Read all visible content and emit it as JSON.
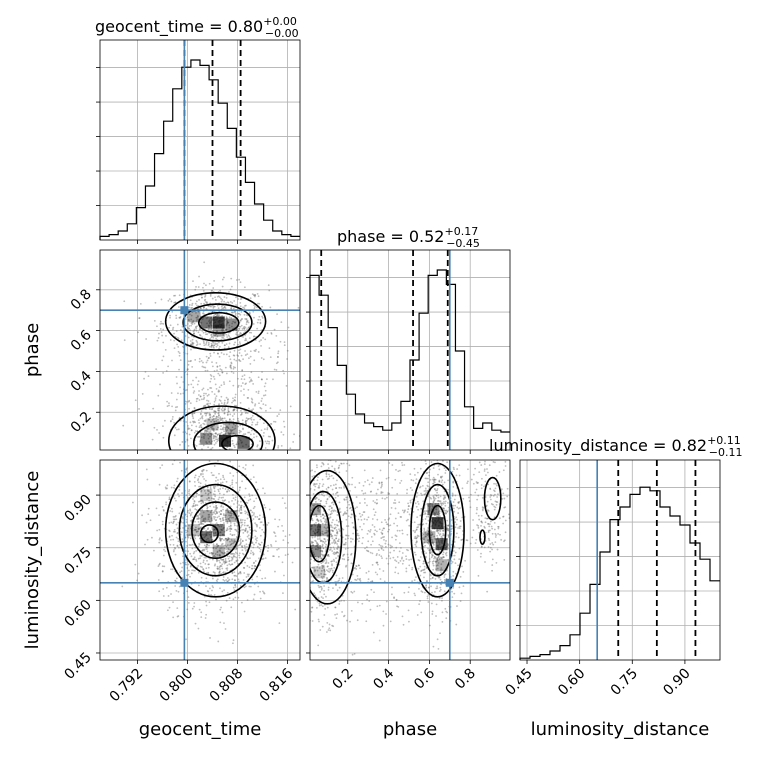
{
  "chart_data": {
    "type": "corner",
    "parameters": [
      {
        "key": "geocent_time",
        "label": "geocent_time",
        "range": [
          0.786,
          0.818
        ],
        "ticks": [
          0.792,
          0.8,
          0.808,
          0.816
        ],
        "tick_labels": [
          "0.792",
          "0.800",
          "0.808",
          "0.816"
        ],
        "truth": 0.7995,
        "quantiles": [
          0.7995,
          0.804,
          0.8085
        ]
      },
      {
        "key": "phase",
        "label": "phase",
        "range": [
          0.015,
          0.995
        ],
        "ticks": [
          0.2,
          0.4,
          0.6,
          0.8
        ],
        "tick_labels": [
          "0.2",
          "0.4",
          "0.6",
          "0.8"
        ],
        "truth": 0.7,
        "quantiles": [
          0.07,
          0.52,
          0.69
        ]
      },
      {
        "key": "luminosity_distance",
        "label": "luminosity_distance",
        "range": [
          0.43,
          1.0
        ],
        "ticks": [
          0.45,
          0.6,
          0.75,
          0.9
        ],
        "tick_labels": [
          "0.45",
          "0.60",
          "0.75",
          "0.90"
        ],
        "truth": 0.65,
        "quantiles": [
          0.71,
          0.82,
          0.93
        ]
      }
    ],
    "titles": [
      {
        "param": "geocent_time = 0.80",
        "plus": "+0.00",
        "minus": "−0.00"
      },
      {
        "param": "phase = 0.52",
        "plus": "+0.17",
        "minus": "−0.45"
      },
      {
        "param": "luminosity_distance = 0.82",
        "plus": "+0.11",
        "minus": "−0.11"
      }
    ],
    "histograms": {
      "geocent_time": [
        0.02,
        0.03,
        0.05,
        0.09,
        0.18,
        0.3,
        0.48,
        0.66,
        0.84,
        0.96,
        1.0,
        0.97,
        0.89,
        0.76,
        0.62,
        0.46,
        0.32,
        0.2,
        0.11,
        0.05,
        0.03,
        0.02
      ],
      "phase": [
        0.97,
        0.86,
        0.68,
        0.47,
        0.31,
        0.2,
        0.15,
        0.13,
        0.11,
        0.15,
        0.27,
        0.5,
        0.76,
        0.97,
        1.0,
        0.92,
        0.55,
        0.24,
        0.12,
        0.15,
        0.11,
        0.1
      ],
      "luminosity_distance": [
        0.01,
        0.02,
        0.03,
        0.05,
        0.08,
        0.14,
        0.26,
        0.42,
        0.6,
        0.78,
        0.85,
        0.92,
        0.96,
        0.94,
        0.85,
        0.8,
        0.75,
        0.65,
        0.56,
        0.44
      ]
    },
    "grid": true,
    "style": {
      "truth_color": "#4682b4",
      "line_color": "#000000",
      "quantile_style": "dashed"
    }
  }
}
